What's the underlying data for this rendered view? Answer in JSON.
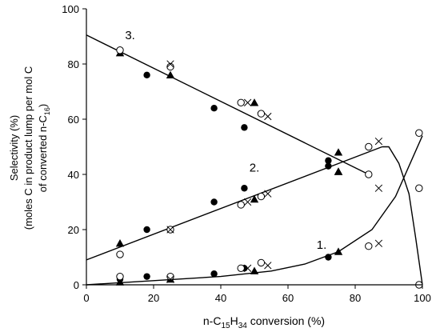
{
  "chart_data": {
    "type": "scatter",
    "title": "",
    "xlabel": {
      "pre": "n-C",
      "sub1": "15",
      "mid": "H",
      "sub2": "34",
      "post": " conversion (%)"
    },
    "ylabel": {
      "line1": "Selectivity (%)",
      "line2": "(moles C in product lump per mol C",
      "line3_pre": "of converted n-C",
      "line3_sub": "16",
      "line3_post": ")"
    },
    "xlim": [
      0,
      100
    ],
    "ylim": [
      0,
      100
    ],
    "x_ticks": [
      0,
      20,
      40,
      60,
      80,
      100
    ],
    "y_ticks": [
      0,
      20,
      40,
      60,
      80,
      100
    ],
    "grid": false,
    "annotations": [
      {
        "text": "3.",
        "x": 13,
        "y": 89
      },
      {
        "text": "2.",
        "x": 50,
        "y": 41
      },
      {
        "text": "1.",
        "x": 70,
        "y": 13
      }
    ],
    "series": [
      {
        "marker": "filled-circle",
        "points": [
          [
            10,
            85
          ],
          [
            18,
            76
          ],
          [
            38,
            64
          ],
          [
            47,
            57
          ],
          [
            72,
            45
          ],
          [
            18,
            20
          ],
          [
            38,
            30
          ],
          [
            47,
            35
          ],
          [
            72,
            43
          ],
          [
            10,
            2
          ],
          [
            18,
            3
          ],
          [
            38,
            4
          ],
          [
            47,
            6
          ],
          [
            72,
            10
          ]
        ]
      },
      {
        "marker": "filled-triangle",
        "points": [
          [
            10,
            84
          ],
          [
            25,
            76
          ],
          [
            50,
            66
          ],
          [
            75,
            48
          ],
          [
            75,
            41
          ],
          [
            10,
            15
          ],
          [
            50,
            31
          ],
          [
            75,
            41
          ],
          [
            10,
            1
          ],
          [
            25,
            2
          ],
          [
            50,
            5
          ],
          [
            75,
            12
          ]
        ]
      },
      {
        "marker": "open-circle",
        "points": [
          [
            10,
            85
          ],
          [
            25,
            79
          ],
          [
            46,
            66
          ],
          [
            52,
            62
          ],
          [
            84,
            40
          ],
          [
            10,
            11
          ],
          [
            25,
            20
          ],
          [
            46,
            29
          ],
          [
            52,
            32
          ],
          [
            84,
            50
          ],
          [
            99,
            35
          ],
          [
            10,
            3
          ],
          [
            25,
            3
          ],
          [
            46,
            6
          ],
          [
            52,
            8
          ],
          [
            84,
            14
          ],
          [
            99,
            55
          ],
          [
            99,
            0
          ]
        ]
      },
      {
        "marker": "cross",
        "points": [
          [
            25,
            80
          ],
          [
            48,
            66
          ],
          [
            54,
            61
          ],
          [
            87,
            35
          ],
          [
            25,
            20
          ],
          [
            48,
            30
          ],
          [
            54,
            33
          ],
          [
            87,
            52
          ],
          [
            25,
            2
          ],
          [
            48,
            6
          ],
          [
            54,
            7
          ],
          [
            87,
            15
          ]
        ]
      }
    ],
    "lines": [
      {
        "name": "3",
        "points": [
          [
            0,
            90.5
          ],
          [
            84,
            40
          ]
        ]
      },
      {
        "name": "2",
        "points": [
          [
            0,
            9
          ],
          [
            88,
            50
          ]
        ]
      },
      {
        "name": "1",
        "points": [
          [
            0,
            0
          ],
          [
            20,
            1.5
          ],
          [
            40,
            3
          ],
          [
            55,
            5
          ],
          [
            65,
            7.5
          ],
          [
            75,
            12
          ],
          [
            85,
            20
          ],
          [
            92,
            32
          ],
          [
            100,
            54
          ]
        ]
      },
      {
        "name": "2-tail",
        "points": [
          [
            88,
            50
          ],
          [
            90,
            50
          ],
          [
            93,
            44
          ],
          [
            96,
            33
          ],
          [
            98,
            17
          ],
          [
            100,
            0
          ]
        ]
      }
    ]
  }
}
